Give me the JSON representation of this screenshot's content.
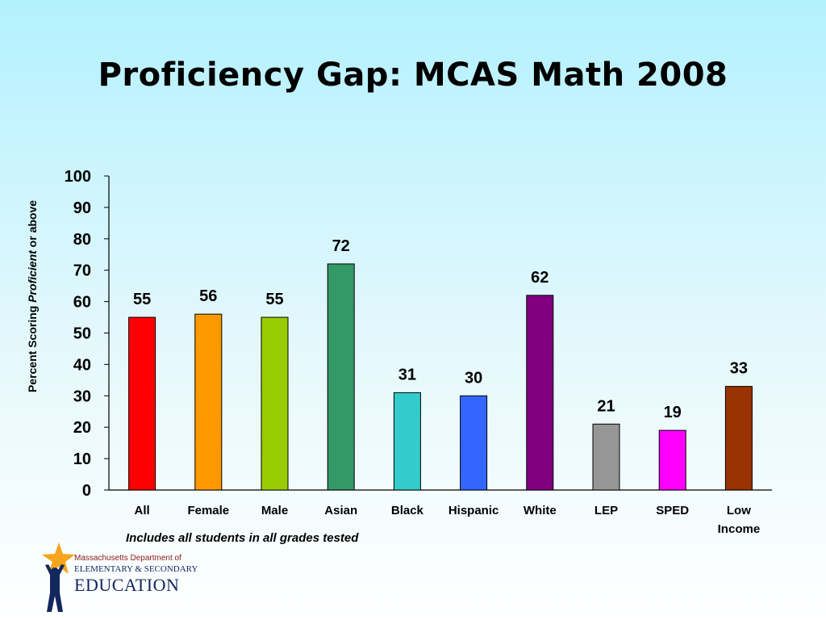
{
  "slide": {
    "title": "Proficiency Gap: MCAS Math 2008",
    "ylabel_pre": "Percent Scoring ",
    "ylabel_em": "Proficient",
    "ylabel_post": " or above",
    "footnote": "Includes all students in all grades tested"
  },
  "logo": {
    "line1": "Massachusetts Department of",
    "line2": "ELEMENTARY & SECONDARY",
    "line3": "EDUCATION",
    "colors": {
      "star": "#f7a51c",
      "figure": "#12275e",
      "text_red": "#8b1a1a",
      "text_blue": "#12275e"
    }
  },
  "chart_data": {
    "type": "bar",
    "title": "Proficiency Gap: MCAS Math 2008",
    "ylabel": "Percent Scoring Proficient or above",
    "xlabel": "",
    "ylim": [
      0,
      100
    ],
    "yticks": [
      "0",
      "10",
      "20",
      "30",
      "40",
      "50",
      "60",
      "70",
      "80",
      "90",
      "100"
    ],
    "grid": false,
    "categories": [
      [
        "All"
      ],
      [
        "Female"
      ],
      [
        "Male"
      ],
      [
        "Asian"
      ],
      [
        "Black"
      ],
      [
        "Hispanic"
      ],
      [
        "White"
      ],
      [
        "LEP"
      ],
      [
        "SPED"
      ],
      [
        "Low",
        "Income"
      ]
    ],
    "values": [
      55,
      56,
      55,
      72,
      31,
      30,
      62,
      21,
      19,
      33
    ],
    "colors": [
      "#ff0000",
      "#ff9900",
      "#99cc00",
      "#339966",
      "#33cccc",
      "#3366ff",
      "#800080",
      "#969696",
      "#ff00ff",
      "#993300"
    ]
  }
}
